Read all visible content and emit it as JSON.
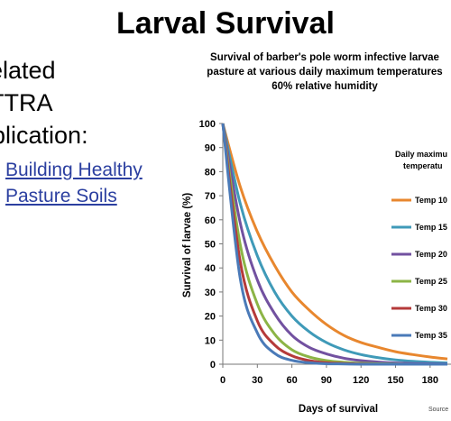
{
  "slide": {
    "title": "Larval Survival",
    "side_lines": [
      "elated",
      "TTRA",
      "ublication:"
    ],
    "links": [
      "Building Healthy",
      "Pasture Soils"
    ]
  },
  "chart_data": {
    "type": "line",
    "title_lines": [
      "Survival of barber's pole worm infective larvae",
      "pasture at various daily maximum temperatures",
      "60% relative humidity"
    ],
    "xlabel": "Days of survival",
    "ylabel": "Survival of larvae (%)",
    "xlim": [
      0,
      195
    ],
    "ylim": [
      0,
      100
    ],
    "x_ticks": [
      0,
      30,
      60,
      90,
      120,
      150,
      180
    ],
    "y_ticks": [
      0,
      10,
      20,
      30,
      40,
      50,
      60,
      70,
      80,
      90,
      100
    ],
    "grid": false,
    "legend_title": [
      "Daily maximu",
      "temperatu"
    ],
    "legend_position": "right",
    "source_note": "Source",
    "series": [
      {
        "name": "Temp 10",
        "color": "#e8872e",
        "x": [
          0,
          15,
          30,
          45,
          60,
          75,
          90,
          105,
          120,
          135,
          150,
          165,
          180,
          195
        ],
        "values": [
          100,
          74,
          55,
          41,
          30,
          22.5,
          16.5,
          12,
          9,
          7,
          5.2,
          4,
          3,
          2.2
        ]
      },
      {
        "name": "Temp 15",
        "color": "#3f9ab8",
        "x": [
          0,
          15,
          30,
          45,
          60,
          75,
          90,
          105,
          120,
          135,
          150,
          165,
          180,
          195
        ],
        "values": [
          100,
          67,
          45,
          30,
          20,
          13.5,
          9,
          6,
          4,
          2.7,
          1.8,
          1.2,
          0.8,
          0.5
        ]
      },
      {
        "name": "Temp 20",
        "color": "#7251a0",
        "x": [
          0,
          15,
          30,
          45,
          60,
          75,
          90,
          105,
          120,
          135,
          150,
          165,
          180,
          195
        ],
        "values": [
          100,
          59,
          35,
          21,
          12,
          7,
          4.3,
          2.5,
          1.5,
          0.9,
          0.5,
          0.3,
          0.2,
          0.1
        ]
      },
      {
        "name": "Temp 25",
        "color": "#8cb446",
        "x": [
          0,
          15,
          30,
          45,
          60,
          75,
          90,
          105,
          120,
          135,
          150,
          165,
          180,
          195
        ],
        "values": [
          100,
          50,
          25,
          12.5,
          6,
          3,
          1.5,
          0.8,
          0.4,
          0.2,
          0.1,
          0,
          0,
          0
        ]
      },
      {
        "name": "Temp 30",
        "color": "#b53a3a",
        "x": [
          0,
          15,
          30,
          45,
          60,
          75,
          90,
          105,
          120,
          135,
          150,
          165,
          180,
          195
        ],
        "values": [
          100,
          43,
          18,
          8,
          3.5,
          1.5,
          0.6,
          0.3,
          0.1,
          0,
          0,
          0,
          0,
          0
        ]
      },
      {
        "name": "Temp 35",
        "color": "#4a7ab8",
        "x": [
          0,
          15,
          30,
          45,
          60,
          75,
          90,
          105,
          120,
          135,
          150,
          165,
          180,
          195
        ],
        "values": [
          100,
          36,
          13,
          4.5,
          1.6,
          0.6,
          0.2,
          0.1,
          0,
          0,
          0,
          0,
          0,
          0
        ]
      }
    ]
  }
}
